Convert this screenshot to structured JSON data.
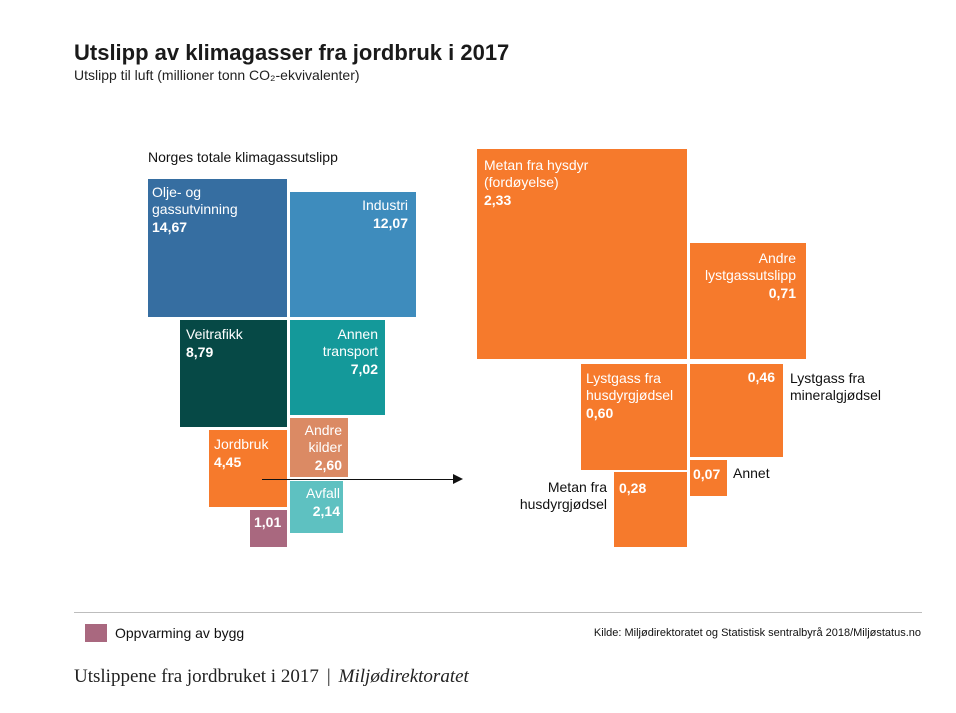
{
  "header": {
    "title": "Utslipp av klimagasser fra jordbruk i 2017",
    "subtitle": "Utslipp til luft (millioner tonn CO₂-ekvivalenter)"
  },
  "left_panel_label": "Norges totale klimagassutslipp",
  "legend": {
    "label": "Oppvarming av bygg",
    "color": "#a9687f"
  },
  "source": "Kilde: Miljødirektoratet og Statistisk sentralbyrå 2018/Miljøstatus.no",
  "footer": {
    "title": "Utslippene fra jordbruket i 2017",
    "separator": "|",
    "org": "Miljødirektoratet"
  },
  "chart_data": [
    {
      "type": "treemap",
      "title": "Norges totale klimagassutslipp",
      "items": [
        {
          "label": "Olje- og\ngassutvinning",
          "value": 14.67,
          "value_text": "14,67",
          "color": "#366ea1"
        },
        {
          "label": "Industri",
          "value": 12.07,
          "value_text": "12,07",
          "color": "#3e8cbd"
        },
        {
          "label": "Veitrafikk",
          "value": 8.79,
          "value_text": "8,79",
          "color": "#064946"
        },
        {
          "label": "Annen\ntransport",
          "value": 7.02,
          "value_text": "7,02",
          "color": "#14999a"
        },
        {
          "label": "Jordbruk",
          "value": 4.45,
          "value_text": "4,45",
          "color": "#f67a2c"
        },
        {
          "label": "Andre\nkilder",
          "value": 2.6,
          "value_text": "2,60",
          "color": "#db8a64"
        },
        {
          "label": "Avfall",
          "value": 2.14,
          "value_text": "2,14",
          "color": "#5ec1c1"
        },
        {
          "label": "Oppvarming av bygg",
          "value": 1.01,
          "value_text": "1,01",
          "color": "#a9687f"
        }
      ]
    },
    {
      "type": "treemap",
      "title": "Jordbruk",
      "items": [
        {
          "label": "Metan fra hysdyr\n(fordøyelse)",
          "value": 2.33,
          "value_text": "2,33",
          "color": "#f67a2c"
        },
        {
          "label": "Andre\nlystgassutslipp",
          "value": 0.71,
          "value_text": "0,71",
          "color": "#f67a2c"
        },
        {
          "label": "Lystgass fra\nhusdyrgjødsel",
          "value": 0.6,
          "value_text": "0,60",
          "color": "#f67a2c"
        },
        {
          "label": "Lystgass fra\nmineralgjødsel",
          "value": 0.46,
          "value_text": "0,46",
          "color": "#f67a2c"
        },
        {
          "label": "Metan fra\nhusdyrgjødsel",
          "value": 0.28,
          "value_text": "0,28",
          "color": "#f67a2c"
        },
        {
          "label": "Annet",
          "value": 0.07,
          "value_text": "0,07",
          "color": "#f67a2c"
        }
      ]
    }
  ]
}
